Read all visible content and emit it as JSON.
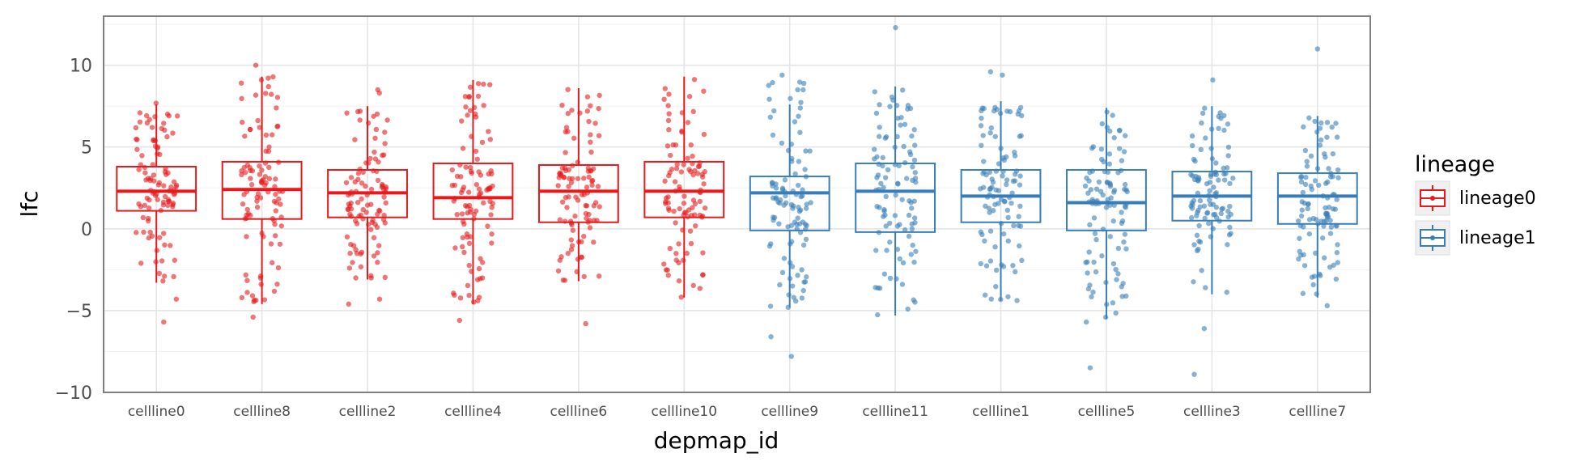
{
  "chart_data": {
    "type": "box",
    "xlabel": "depmap_id",
    "ylabel": "lfc",
    "ylim": [
      -10,
      13
    ],
    "yticks": [
      -10,
      -5,
      0,
      5,
      10
    ],
    "grid": true,
    "legend": {
      "title": "lineage",
      "placement": "right",
      "entries": [
        {
          "name": "lineage0",
          "color": "#e41a1c"
        },
        {
          "name": "lineage1",
          "color": "#377eb8"
        }
      ]
    },
    "boxes": [
      {
        "category": "cellline0",
        "lineage": "lineage0",
        "q1": 1.1,
        "median": 2.3,
        "q3": 3.8,
        "whisker_low": -3.3,
        "whisker_high": 7.6,
        "outliers": [
          -4.3,
          -5.7
        ],
        "point_range": [
          -3.3,
          7.7
        ]
      },
      {
        "category": "cellline8",
        "lineage": "lineage0",
        "q1": 0.6,
        "median": 2.4,
        "q3": 4.1,
        "whisker_low": -4.6,
        "whisker_high": 9.3,
        "outliers": [
          10.0,
          -5.4
        ],
        "point_range": [
          -4.5,
          9.3
        ]
      },
      {
        "category": "cellline2",
        "lineage": "lineage0",
        "q1": 0.7,
        "median": 2.2,
        "q3": 3.6,
        "whisker_low": -3.1,
        "whisker_high": 7.5,
        "outliers": [
          8.5,
          8.3,
          -4.3,
          -4.6
        ],
        "point_range": [
          -3.1,
          7.5
        ]
      },
      {
        "category": "cellline4",
        "lineage": "lineage0",
        "q1": 0.6,
        "median": 1.9,
        "q3": 4.0,
        "whisker_low": -4.6,
        "whisker_high": 9.1,
        "outliers": [
          -5.6
        ],
        "point_range": [
          -4.5,
          9.1
        ]
      },
      {
        "category": "cellline6",
        "lineage": "lineage0",
        "q1": 0.4,
        "median": 2.3,
        "q3": 3.9,
        "whisker_low": -3.2,
        "whisker_high": 8.6,
        "outliers": [
          -5.8
        ],
        "point_range": [
          -3.2,
          8.6
        ]
      },
      {
        "category": "cellline10",
        "lineage": "lineage0",
        "q1": 0.7,
        "median": 2.3,
        "q3": 4.1,
        "whisker_low": -4.2,
        "whisker_high": 9.3,
        "outliers": [],
        "point_range": [
          -4.2,
          9.3
        ]
      },
      {
        "category": "cellline9",
        "lineage": "lineage1",
        "q1": -0.1,
        "median": 2.2,
        "q3": 3.2,
        "whisker_low": -4.8,
        "whisker_high": 7.6,
        "outliers": [
          9.4,
          8.5,
          -6.6,
          -7.8
        ],
        "point_range": [
          -4.8,
          9.0
        ]
      },
      {
        "category": "cellline11",
        "lineage": "lineage1",
        "q1": -0.2,
        "median": 2.3,
        "q3": 4.0,
        "whisker_low": -5.3,
        "whisker_high": 8.7,
        "outliers": [
          12.3
        ],
        "point_range": [
          -5.3,
          8.7
        ]
      },
      {
        "category": "cellline1",
        "lineage": "lineage1",
        "q1": 0.4,
        "median": 2.0,
        "q3": 3.6,
        "whisker_low": -4.4,
        "whisker_high": 7.8,
        "outliers": [
          9.6,
          9.4
        ],
        "point_range": [
          -4.4,
          7.8
        ]
      },
      {
        "category": "cellline5",
        "lineage": "lineage1",
        "q1": -0.1,
        "median": 1.6,
        "q3": 3.6,
        "whisker_low": -5.5,
        "whisker_high": 7.4,
        "outliers": [
          -8.5,
          -5.7
        ],
        "point_range": [
          -5.5,
          7.4
        ]
      },
      {
        "category": "cellline3",
        "lineage": "lineage1",
        "q1": 0.5,
        "median": 2.0,
        "q3": 3.5,
        "whisker_low": -4.0,
        "whisker_high": 7.5,
        "outliers": [
          9.1,
          -6.1,
          -8.9
        ],
        "point_range": [
          -4.0,
          7.5
        ]
      },
      {
        "category": "cellline7",
        "lineage": "lineage1",
        "q1": 0.3,
        "median": 2.0,
        "q3": 3.4,
        "whisker_low": -4.2,
        "whisker_high": 6.9,
        "outliers": [
          11.0,
          -4.7
        ],
        "point_range": [
          -4.2,
          6.9
        ]
      }
    ]
  }
}
